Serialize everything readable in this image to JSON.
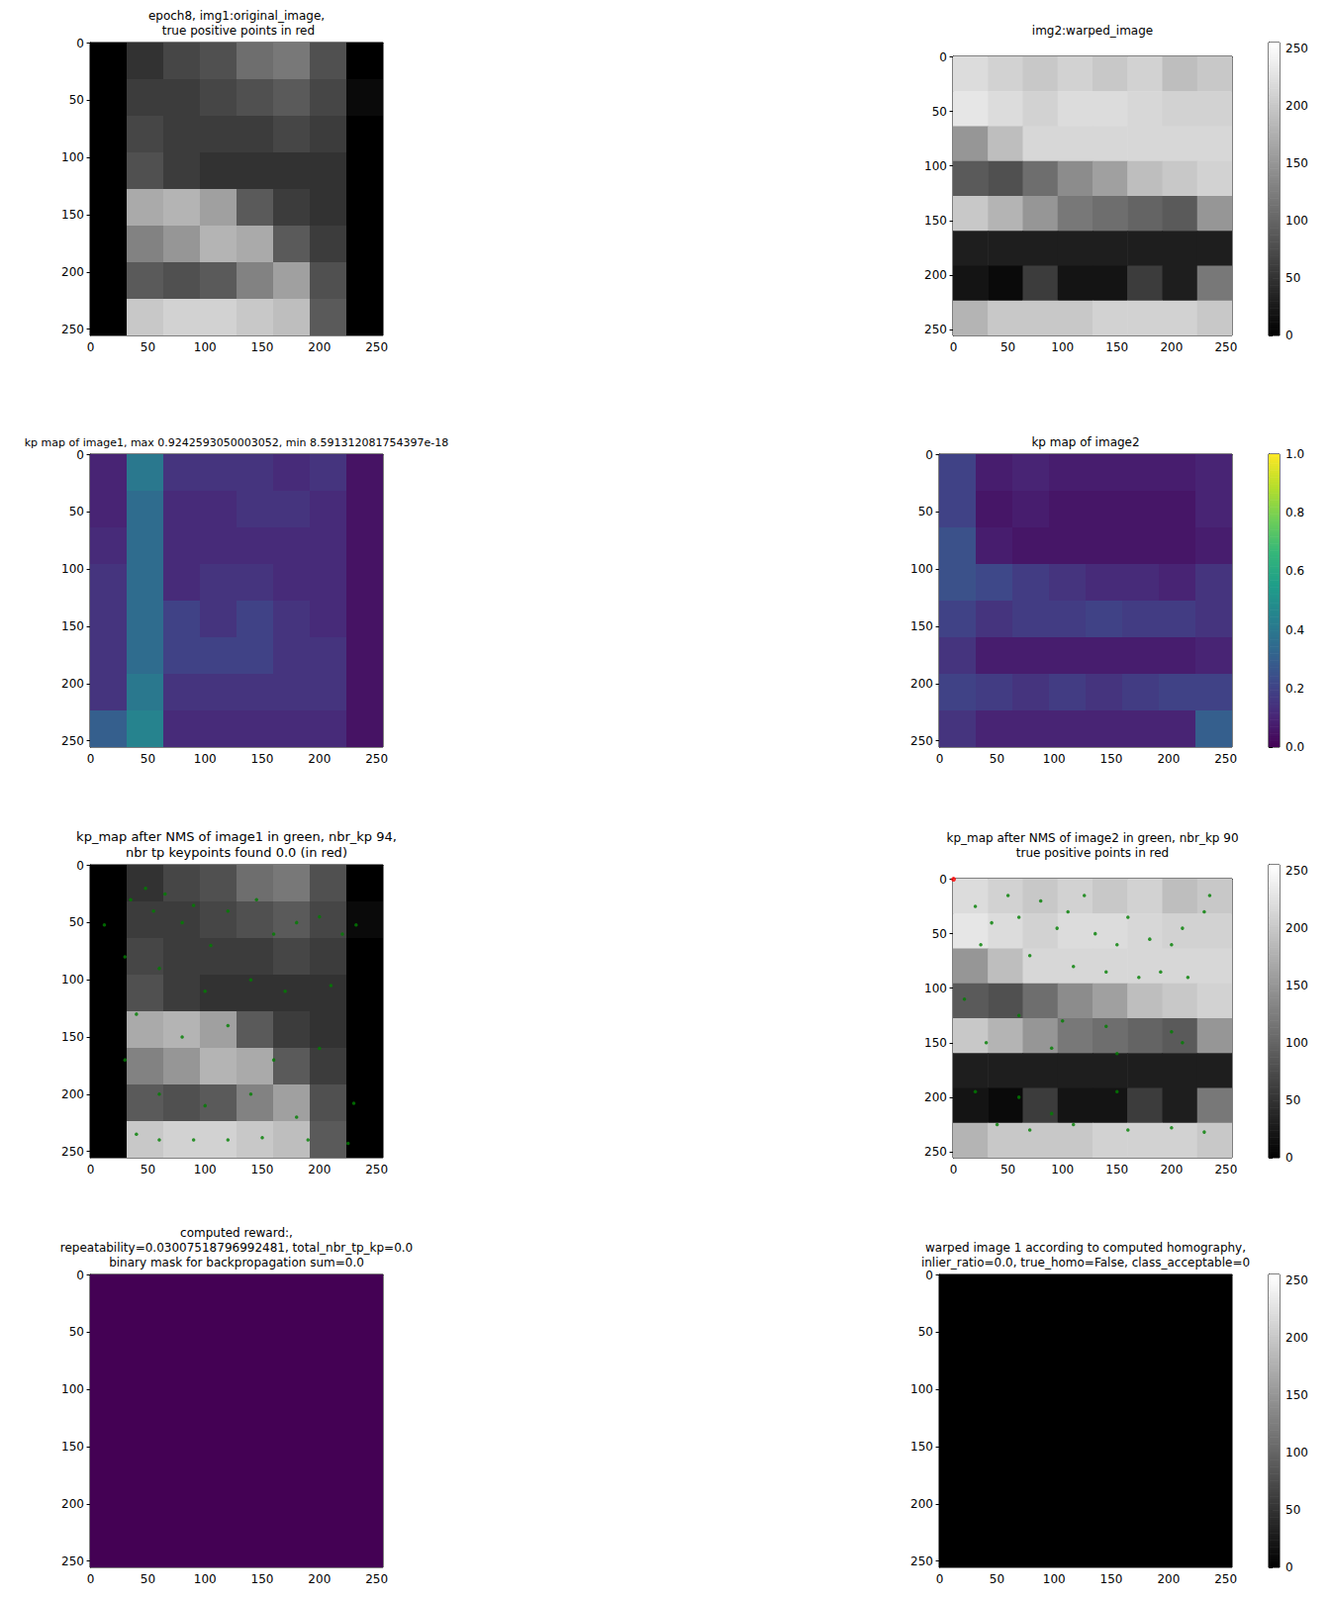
{
  "chart_data": [
    {
      "type": "image",
      "title": "epoch8, img1:original_image,\n true positive points in red",
      "color": "gray",
      "clim": [
        0,
        255
      ],
      "xlim": [
        -0.5,
        255.5
      ],
      "ylim": [
        255.5,
        -0.5
      ],
      "xticks": [
        0,
        50,
        100,
        150,
        200,
        250
      ],
      "yticks": [
        0,
        50,
        100,
        150,
        200,
        250
      ],
      "cells": [
        [
          0,
          50,
          70,
          80,
          110,
          120,
          80,
          0
        ],
        [
          0,
          60,
          60,
          70,
          80,
          90,
          70,
          10
        ],
        [
          0,
          70,
          60,
          60,
          60,
          70,
          60,
          0
        ],
        [
          0,
          80,
          60,
          50,
          50,
          50,
          50,
          0
        ],
        [
          0,
          170,
          180,
          160,
          90,
          60,
          50,
          0
        ],
        [
          0,
          130,
          150,
          180,
          170,
          90,
          60,
          0
        ],
        [
          0,
          90,
          80,
          90,
          130,
          160,
          80,
          0
        ],
        [
          0,
          200,
          210,
          210,
          200,
          190,
          90,
          0
        ]
      ]
    },
    {
      "type": "image",
      "title": "img2:warped_image",
      "color": "gray",
      "clim": [
        0,
        255
      ],
      "xlim": [
        -0.5,
        255.5
      ],
      "ylim": [
        255.5,
        -0.5
      ],
      "xticks": [
        0,
        50,
        100,
        150,
        200,
        250
      ],
      "yticks": [
        0,
        50,
        100,
        150,
        200,
        250
      ],
      "cells": [
        [
          220,
          210,
          200,
          210,
          200,
          210,
          190,
          200
        ],
        [
          230,
          220,
          210,
          220,
          220,
          215,
          210,
          210
        ],
        [
          150,
          190,
          215,
          215,
          215,
          215,
          215,
          215
        ],
        [
          90,
          80,
          110,
          140,
          160,
          190,
          200,
          210
        ],
        [
          200,
          180,
          150,
          120,
          110,
          100,
          90,
          150
        ],
        [
          30,
          30,
          30,
          30,
          30,
          30,
          30,
          30
        ],
        [
          20,
          10,
          60,
          20,
          20,
          60,
          30,
          120
        ],
        [
          180,
          200,
          200,
          200,
          210,
          210,
          210,
          200
        ]
      ],
      "colorbar": {
        "range": [
          0,
          255
        ],
        "ticks": [
          0,
          50,
          100,
          150,
          200,
          250
        ]
      }
    },
    {
      "type": "image",
      "title": "kp map of image1, max 0.9242593050003052, min 8.591312081754397e-18",
      "color": "viridis",
      "clim": [
        0,
        1
      ],
      "xlim": [
        -0.5,
        255.5
      ],
      "ylim": [
        255.5,
        -0.5
      ],
      "xticks": [
        0,
        50,
        100,
        150,
        200,
        250
      ],
      "yticks": [
        0,
        50,
        100,
        150,
        200,
        250
      ],
      "cells": [
        [
          0.1,
          0.4,
          0.15,
          0.15,
          0.15,
          0.12,
          0.15,
          0.05
        ],
        [
          0.1,
          0.35,
          0.12,
          0.12,
          0.15,
          0.15,
          0.12,
          0.05
        ],
        [
          0.12,
          0.35,
          0.12,
          0.12,
          0.12,
          0.12,
          0.12,
          0.05
        ],
        [
          0.15,
          0.35,
          0.12,
          0.15,
          0.15,
          0.12,
          0.12,
          0.05
        ],
        [
          0.15,
          0.35,
          0.2,
          0.15,
          0.2,
          0.15,
          0.12,
          0.05
        ],
        [
          0.15,
          0.35,
          0.2,
          0.2,
          0.2,
          0.15,
          0.15,
          0.05
        ],
        [
          0.15,
          0.4,
          0.15,
          0.15,
          0.15,
          0.15,
          0.15,
          0.05
        ],
        [
          0.3,
          0.45,
          0.12,
          0.12,
          0.12,
          0.12,
          0.12,
          0.05
        ]
      ]
    },
    {
      "type": "image",
      "title": "kp map of image2",
      "color": "viridis",
      "clim": [
        0,
        1
      ],
      "xlim": [
        -0.5,
        255.5
      ],
      "ylim": [
        255.5,
        -0.5
      ],
      "xticks": [
        0,
        50,
        100,
        150,
        200,
        250
      ],
      "yticks": [
        0,
        50,
        100,
        150,
        200,
        250
      ],
      "cells": [
        [
          0.2,
          0.08,
          0.1,
          0.08,
          0.08,
          0.08,
          0.08,
          0.1
        ],
        [
          0.2,
          0.06,
          0.08,
          0.06,
          0.06,
          0.06,
          0.06,
          0.1
        ],
        [
          0.25,
          0.08,
          0.06,
          0.06,
          0.06,
          0.06,
          0.06,
          0.08
        ],
        [
          0.25,
          0.22,
          0.18,
          0.15,
          0.12,
          0.12,
          0.1,
          0.15
        ],
        [
          0.2,
          0.15,
          0.18,
          0.18,
          0.2,
          0.18,
          0.18,
          0.15
        ],
        [
          0.15,
          0.08,
          0.08,
          0.08,
          0.08,
          0.08,
          0.08,
          0.1
        ],
        [
          0.2,
          0.18,
          0.15,
          0.18,
          0.15,
          0.18,
          0.2,
          0.2
        ],
        [
          0.15,
          0.1,
          0.1,
          0.1,
          0.1,
          0.1,
          0.1,
          0.3
        ]
      ],
      "colorbar": {
        "range": [
          0,
          1
        ],
        "ticks": [
          {
            "value": 0,
            "label": "0.0"
          },
          {
            "value": 0.2,
            "label": "0.2"
          },
          {
            "value": 0.4,
            "label": "0.4"
          },
          {
            "value": 0.6,
            "label": "0.6"
          },
          {
            "value": 0.8,
            "label": "0.8"
          },
          {
            "value": 1,
            "label": "1.0"
          }
        ]
      }
    },
    {
      "type": "image",
      "title": "kp_map after NMS of image1 in green, nbr_kp 94,\nnbr tp keypoints found 0.0 (in red)",
      "color": "gray",
      "clim": [
        0,
        255
      ],
      "xlim": [
        -0.5,
        255.5
      ],
      "ylim": [
        255.5,
        -0.5
      ],
      "xticks": [
        0,
        50,
        100,
        150,
        200,
        250
      ],
      "yticks": [
        0,
        50,
        100,
        150,
        200,
        250
      ],
      "cells": [
        [
          0,
          50,
          70,
          80,
          110,
          120,
          80,
          0
        ],
        [
          0,
          60,
          60,
          70,
          80,
          90,
          70,
          10
        ],
        [
          0,
          70,
          60,
          60,
          60,
          70,
          60,
          0
        ],
        [
          0,
          80,
          60,
          50,
          50,
          50,
          50,
          0
        ],
        [
          0,
          170,
          180,
          160,
          90,
          60,
          50,
          0
        ],
        [
          0,
          130,
          150,
          180,
          170,
          90,
          60,
          0
        ],
        [
          0,
          90,
          80,
          90,
          130,
          160,
          80,
          0
        ],
        [
          0,
          200,
          210,
          210,
          200,
          190,
          90,
          0
        ]
      ],
      "keypoints": {
        "color": "green",
        "points": [
          [
            12,
            52
          ],
          [
            35,
            30
          ],
          [
            48,
            20
          ],
          [
            55,
            40
          ],
          [
            65,
            25
          ],
          [
            80,
            50
          ],
          [
            90,
            35
          ],
          [
            105,
            70
          ],
          [
            120,
            40
          ],
          [
            145,
            30
          ],
          [
            160,
            60
          ],
          [
            180,
            50
          ],
          [
            200,
            45
          ],
          [
            220,
            60
          ],
          [
            232,
            52
          ],
          [
            30,
            80
          ],
          [
            60,
            90
          ],
          [
            100,
            110
          ],
          [
            140,
            100
          ],
          [
            170,
            110
          ],
          [
            210,
            105
          ],
          [
            40,
            130
          ],
          [
            80,
            150
          ],
          [
            120,
            140
          ],
          [
            160,
            170
          ],
          [
            200,
            160
          ],
          [
            30,
            170
          ],
          [
            60,
            200
          ],
          [
            100,
            210
          ],
          [
            140,
            200
          ],
          [
            180,
            220
          ],
          [
            230,
            208
          ],
          [
            40,
            235
          ],
          [
            60,
            240
          ],
          [
            90,
            240
          ],
          [
            120,
            240
          ],
          [
            150,
            238
          ],
          [
            190,
            240
          ],
          [
            225,
            243
          ]
        ]
      }
    },
    {
      "type": "image",
      "title": "kp_map after NMS of image2 in green, nbr_kp 90\ntrue positive points in red",
      "color": "gray",
      "clim": [
        0,
        255
      ],
      "xlim": [
        -0.5,
        255.5
      ],
      "ylim": [
        255.5,
        -0.5
      ],
      "xticks": [
        0,
        50,
        100,
        150,
        200,
        250
      ],
      "yticks": [
        0,
        50,
        100,
        150,
        200,
        250
      ],
      "cells": [
        [
          220,
          210,
          200,
          210,
          200,
          210,
          190,
          200
        ],
        [
          230,
          220,
          210,
          220,
          220,
          215,
          210,
          210
        ],
        [
          150,
          190,
          215,
          215,
          215,
          215,
          215,
          215
        ],
        [
          90,
          80,
          110,
          140,
          160,
          190,
          200,
          210
        ],
        [
          200,
          180,
          150,
          120,
          110,
          100,
          90,
          150
        ],
        [
          30,
          30,
          30,
          30,
          30,
          30,
          30,
          30
        ],
        [
          20,
          10,
          60,
          20,
          20,
          60,
          30,
          120
        ],
        [
          180,
          200,
          200,
          200,
          210,
          210,
          210,
          200
        ]
      ],
      "keypoints": {
        "color": "green",
        "points": [
          [
            20,
            25
          ],
          [
            35,
            40
          ],
          [
            50,
            15
          ],
          [
            60,
            35
          ],
          [
            80,
            20
          ],
          [
            95,
            45
          ],
          [
            105,
            30
          ],
          [
            120,
            15
          ],
          [
            130,
            50
          ],
          [
            150,
            60
          ],
          [
            160,
            35
          ],
          [
            180,
            55
          ],
          [
            200,
            60
          ],
          [
            210,
            45
          ],
          [
            230,
            30
          ],
          [
            235,
            15
          ],
          [
            25,
            60
          ],
          [
            70,
            70
          ],
          [
            110,
            80
          ],
          [
            140,
            85
          ],
          [
            170,
            90
          ],
          [
            190,
            85
          ],
          [
            215,
            90
          ],
          [
            10,
            110
          ],
          [
            60,
            125
          ],
          [
            100,
            130
          ],
          [
            140,
            135
          ],
          [
            200,
            140
          ],
          [
            30,
            150
          ],
          [
            90,
            155
          ],
          [
            150,
            160
          ],
          [
            210,
            150
          ],
          [
            20,
            195
          ],
          [
            60,
            200
          ],
          [
            90,
            215
          ],
          [
            150,
            195
          ],
          [
            40,
            225
          ],
          [
            70,
            230
          ],
          [
            110,
            225
          ],
          [
            160,
            230
          ],
          [
            200,
            228
          ],
          [
            230,
            232
          ]
        ]
      },
      "true_positives": {
        "color": "red",
        "points": [
          [
            0,
            0
          ]
        ]
      },
      "colorbar": {
        "range": [
          0,
          255
        ],
        "ticks": [
          0,
          50,
          100,
          150,
          200,
          250
        ]
      }
    },
    {
      "type": "image",
      "title": "computed reward:,\nrepeatability=0.03007518796992481, total_nbr_tp_kp=0.0\nbinary mask for backpropagation sum=0.0",
      "color": "viridis",
      "clim": [
        0,
        1
      ],
      "xlim": [
        -0.5,
        255.5
      ],
      "ylim": [
        255.5,
        -0.5
      ],
      "xticks": [
        0,
        50,
        100,
        150,
        200,
        250
      ],
      "yticks": [
        0,
        50,
        100,
        150,
        200,
        250
      ],
      "cells": [
        [
          0
        ]
      ]
    },
    {
      "type": "image",
      "title": "warped image 1 according to computed homography,\ninlier_ratio=0.0, true_homo=False, class_acceptable=0",
      "color": "gray",
      "clim": [
        0,
        255
      ],
      "xlim": [
        -0.5,
        255.5
      ],
      "ylim": [
        255.5,
        -0.5
      ],
      "xticks": [
        0,
        50,
        100,
        150,
        200,
        250
      ],
      "yticks": [
        0,
        50,
        100,
        150,
        200,
        250
      ],
      "cells": [
        [
          0
        ]
      ],
      "colorbar": {
        "range": [
          0,
          255
        ],
        "ticks": [
          0,
          50,
          100,
          150,
          200,
          250
        ]
      }
    }
  ]
}
